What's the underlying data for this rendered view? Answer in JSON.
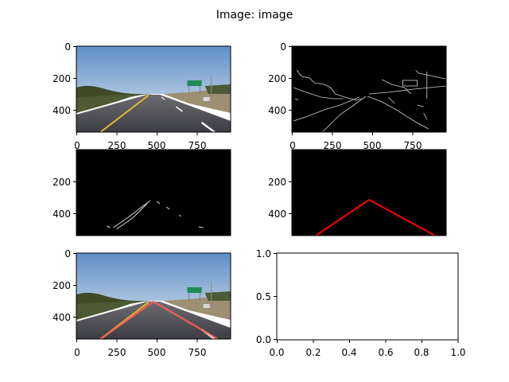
{
  "figure": {
    "suptitle": "Image: image"
  },
  "chart_data": [
    {
      "id": "original",
      "type": "image",
      "description": "road photo (original)",
      "extent_x": [
        0,
        960
      ],
      "extent_y": [
        540,
        0
      ],
      "xticks": [
        "0",
        "250",
        "500",
        "750"
      ],
      "yticks": [
        "0",
        "200",
        "400"
      ]
    },
    {
      "id": "edges",
      "type": "image",
      "description": "Canny edge detection result",
      "extent_x": [
        0,
        960
      ],
      "extent_y": [
        540,
        0
      ],
      "xticks": [
        "0",
        "250",
        "500",
        "750"
      ],
      "yticks": [
        "0",
        "200",
        "400"
      ]
    },
    {
      "id": "masked_edges",
      "type": "image",
      "description": "edges after region-of-interest mask",
      "extent_x": [
        0,
        960
      ],
      "extent_y": [
        540,
        0
      ],
      "xticks": [],
      "yticks": [
        "200",
        "400"
      ]
    },
    {
      "id": "lane_lines",
      "type": "line",
      "description": "Hough lane lines on black",
      "extent_x": [
        0,
        960
      ],
      "extent_y": [
        540,
        0
      ],
      "lines": [
        {
          "x": [
            150,
            480
          ],
          "y": [
            540,
            315
          ],
          "color": "#ff0000"
        },
        {
          "x": [
            480,
            890
          ],
          "y": [
            315,
            540
          ],
          "color": "#ff0000"
        }
      ],
      "xticks": [],
      "yticks": [
        "200",
        "400"
      ]
    },
    {
      "id": "overlay",
      "type": "image",
      "description": "original photo with lane lines overlaid",
      "extent_x": [
        0,
        960
      ],
      "extent_y": [
        540,
        0
      ],
      "lines": [
        {
          "x": [
            150,
            480
          ],
          "y": [
            540,
            305
          ],
          "color": "#ff5a5a"
        },
        {
          "x": [
            480,
            880
          ],
          "y": [
            305,
            540
          ],
          "color": "#ff5a5a"
        }
      ],
      "xticks": [
        "0",
        "250",
        "500",
        "750"
      ],
      "yticks": [
        "0",
        "200",
        "400"
      ]
    },
    {
      "id": "empty",
      "type": "line",
      "description": "empty axes",
      "xlim": [
        0.0,
        1.0
      ],
      "ylim": [
        0.0,
        1.0
      ],
      "xticks": [
        "0.0",
        "0.2",
        "0.4",
        "0.6",
        "0.8",
        "1.0"
      ],
      "yticks": [
        "0.0",
        "0.5",
        "1.0"
      ]
    }
  ]
}
